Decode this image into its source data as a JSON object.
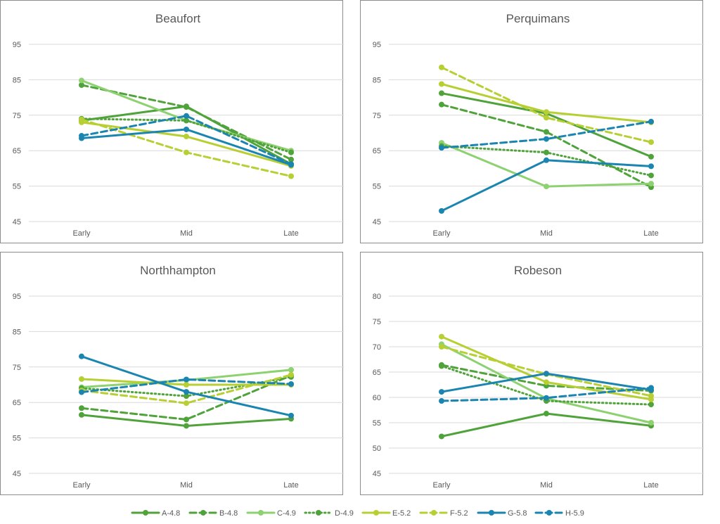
{
  "chart_data": [
    {
      "type": "line",
      "title": "Beaufort",
      "categories": [
        "Early",
        "Mid",
        "Late"
      ],
      "ylim": [
        45,
        95
      ],
      "ticks": [
        45,
        55,
        65,
        75,
        85,
        95
      ],
      "series": [
        {
          "name": "A-4.8",
          "values": [
            73.5,
            77.5,
            61.2
          ]
        },
        {
          "name": "B-4.8",
          "values": [
            83.5,
            77.3,
            62.5
          ]
        },
        {
          "name": "C-4.9",
          "values": [
            84.8,
            73.5,
            65.0
          ]
        },
        {
          "name": "D-4.9",
          "values": [
            74.0,
            73.5,
            64.5
          ]
        },
        {
          "name": "E-5.2",
          "values": [
            73.0,
            69.0,
            60.7
          ]
        },
        {
          "name": "F-5.2",
          "values": [
            73.8,
            64.5,
            57.8
          ]
        },
        {
          "name": "G-5.8",
          "values": [
            68.5,
            71.0,
            61.0
          ]
        },
        {
          "name": "H-5.9",
          "values": [
            69.2,
            74.8,
            61.2
          ]
        }
      ]
    },
    {
      "type": "line",
      "title": "Perquimans",
      "categories": [
        "Early",
        "Mid",
        "Late"
      ],
      "ylim": [
        45,
        95
      ],
      "ticks": [
        45,
        55,
        65,
        75,
        85,
        95
      ],
      "series": [
        {
          "name": "A-4.8",
          "values": [
            81.2,
            75.5,
            63.3
          ]
        },
        {
          "name": "B-4.8",
          "values": [
            78.0,
            70.3,
            54.7
          ]
        },
        {
          "name": "C-4.9",
          "values": [
            67.2,
            54.9,
            55.7
          ]
        },
        {
          "name": "D-4.9",
          "values": [
            66.3,
            64.5,
            58.0
          ]
        },
        {
          "name": "E-5.2",
          "values": [
            83.8,
            75.9,
            73.0
          ]
        },
        {
          "name": "F-5.2",
          "values": [
            88.5,
            74.3,
            67.4
          ]
        },
        {
          "name": "G-5.8",
          "values": [
            48.0,
            62.3,
            60.6
          ]
        },
        {
          "name": "H-5.9",
          "values": [
            65.8,
            68.3,
            73.2
          ]
        }
      ]
    },
    {
      "type": "line",
      "title": "Northhampton",
      "categories": [
        "Early",
        "Mid",
        "Late"
      ],
      "ylim": [
        45,
        95
      ],
      "ticks": [
        45,
        55,
        65,
        75,
        85,
        95
      ],
      "series": [
        {
          "name": "A-4.8",
          "values": [
            61.5,
            58.4,
            60.4
          ]
        },
        {
          "name": "B-4.8",
          "values": [
            63.4,
            60.2,
            72.6
          ]
        },
        {
          "name": "C-4.9",
          "values": [
            69.3,
            71.3,
            74.2
          ]
        },
        {
          "name": "D-4.9",
          "values": [
            69.0,
            66.8,
            72.2
          ]
        },
        {
          "name": "E-5.2",
          "values": [
            71.6,
            70.0,
            70.0
          ]
        },
        {
          "name": "F-5.2",
          "values": [
            68.4,
            64.8,
            72.8
          ]
        },
        {
          "name": "G-5.8",
          "values": [
            78.0,
            68.0,
            61.3
          ]
        },
        {
          "name": "H-5.9",
          "values": [
            67.9,
            71.5,
            70.2
          ]
        }
      ]
    },
    {
      "type": "line",
      "title": "Robeson",
      "categories": [
        "Early",
        "Mid",
        "Late"
      ],
      "ylim": [
        45,
        80
      ],
      "ticks": [
        45,
        50,
        55,
        60,
        65,
        70,
        75,
        80
      ],
      "series": [
        {
          "name": "A-4.8",
          "values": [
            52.3,
            56.8,
            54.4
          ]
        },
        {
          "name": "B-4.8",
          "values": [
            66.4,
            62.3,
            61.3
          ]
        },
        {
          "name": "C-4.9",
          "values": [
            70.5,
            59.8,
            55.0
          ]
        },
        {
          "name": "D-4.9",
          "values": [
            66.2,
            59.3,
            58.6
          ]
        },
        {
          "name": "E-5.2",
          "values": [
            72.0,
            63.0,
            59.6
          ]
        },
        {
          "name": "F-5.2",
          "values": [
            70.0,
            64.6,
            60.3
          ]
        },
        {
          "name": "G-5.8",
          "values": [
            61.1,
            64.7,
            61.5
          ]
        },
        {
          "name": "H-5.9",
          "values": [
            59.3,
            59.9,
            61.9
          ]
        }
      ]
    }
  ],
  "legend": {
    "placement": "bottom",
    "entries": [
      {
        "name": "A-4.8",
        "color": "#4fa33a",
        "dash": "solid"
      },
      {
        "name": "B-4.8",
        "color": "#4fa33a",
        "dash": "dashed"
      },
      {
        "name": "C-4.9",
        "color": "#8dd170",
        "dash": "solid"
      },
      {
        "name": "D-4.9",
        "color": "#4fa33a",
        "dash": "dotted"
      },
      {
        "name": "E-5.2",
        "color": "#b8cf34",
        "dash": "solid"
      },
      {
        "name": "F-5.2",
        "color": "#b8cf34",
        "dash": "dashed"
      },
      {
        "name": "G-5.8",
        "color": "#1a85b0",
        "dash": "solid"
      },
      {
        "name": "H-5.9",
        "color": "#1a85b0",
        "dash": "dashed"
      }
    ]
  },
  "style": {
    "gridline_color": "#d9d9d9",
    "text_color": "#595959",
    "border_color": "#8c8c8c"
  }
}
